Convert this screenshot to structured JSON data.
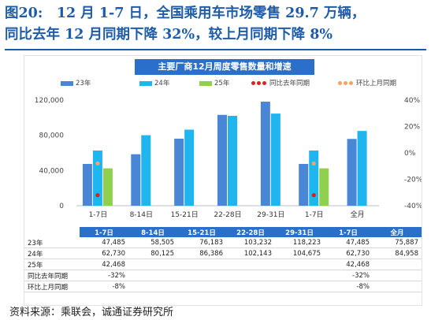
{
  "caption": {
    "line1": "图20:　12 月 1-7 日，全国乘用车市场零售 29.7 万辆，",
    "line2": "同比去年 12 月同期下降 32%，较上月同期下降 8%"
  },
  "source": "资料来源：乘联会，诚通证券研究所",
  "colors": {
    "s23": "#4a86d6",
    "s24": "#1fb6ef",
    "s25": "#8fd14f",
    "yoy": "#e0201c",
    "mom": "#f4a460",
    "header": "#2a6fc9"
  },
  "chart_data": {
    "type": "bar",
    "title": "主要厂商12月周度零售数量和增速",
    "categories": [
      "1-7日",
      "8-14日",
      "15-21日",
      "22-28日",
      "29-31日",
      "1-7日",
      "全月"
    ],
    "ylim": [
      0,
      120000
    ],
    "y2lim": [
      -40,
      40
    ],
    "left_ticks": [
      "120,000",
      "80,000",
      "40,000",
      "0"
    ],
    "right_ticks": [
      "40%",
      "20%",
      "0%",
      "-20%",
      "-40%"
    ],
    "series": [
      {
        "name": "23年",
        "values": [
          47485,
          58505,
          76183,
          103232,
          118223,
          47485,
          75887
        ]
      },
      {
        "name": "24年",
        "values": [
          62730,
          80125,
          86386,
          102143,
          104675,
          62730,
          84958
        ]
      },
      {
        "name": "25年",
        "values": [
          42468,
          null,
          null,
          null,
          null,
          42468,
          null
        ]
      }
    ],
    "lines": [
      {
        "name": "同比去年同期",
        "values": [
          -32,
          null,
          null,
          null,
          null,
          -32,
          null
        ]
      },
      {
        "name": "环比上月同期",
        "values": [
          -8,
          null,
          null,
          null,
          null,
          -8,
          null
        ]
      }
    ],
    "legend_position": "top"
  },
  "table": {
    "header": [
      "1-7日",
      "8-14日",
      "15-21日",
      "22-28日",
      "29-31日",
      "1-7日",
      "全月"
    ],
    "rows": [
      {
        "label": "23年",
        "cells": [
          "47,485",
          "58,505",
          "76,183",
          "103,232",
          "118,223",
          "47,485",
          "75,887"
        ]
      },
      {
        "label": "24年",
        "cells": [
          "62,730",
          "80,125",
          "86,386",
          "102,143",
          "104,675",
          "62,730",
          "84,958"
        ]
      },
      {
        "label": "25年",
        "cells": [
          "42,468",
          "",
          "",
          "",
          "",
          "42,468",
          ""
        ]
      },
      {
        "label": "同比去年同期",
        "cells": [
          "-32%",
          "",
          "",
          "",
          "",
          "-32%",
          ""
        ]
      },
      {
        "label": "环比上月同期",
        "cells": [
          "-8%",
          "",
          "",
          "",
          "",
          "-8%",
          ""
        ]
      }
    ]
  }
}
